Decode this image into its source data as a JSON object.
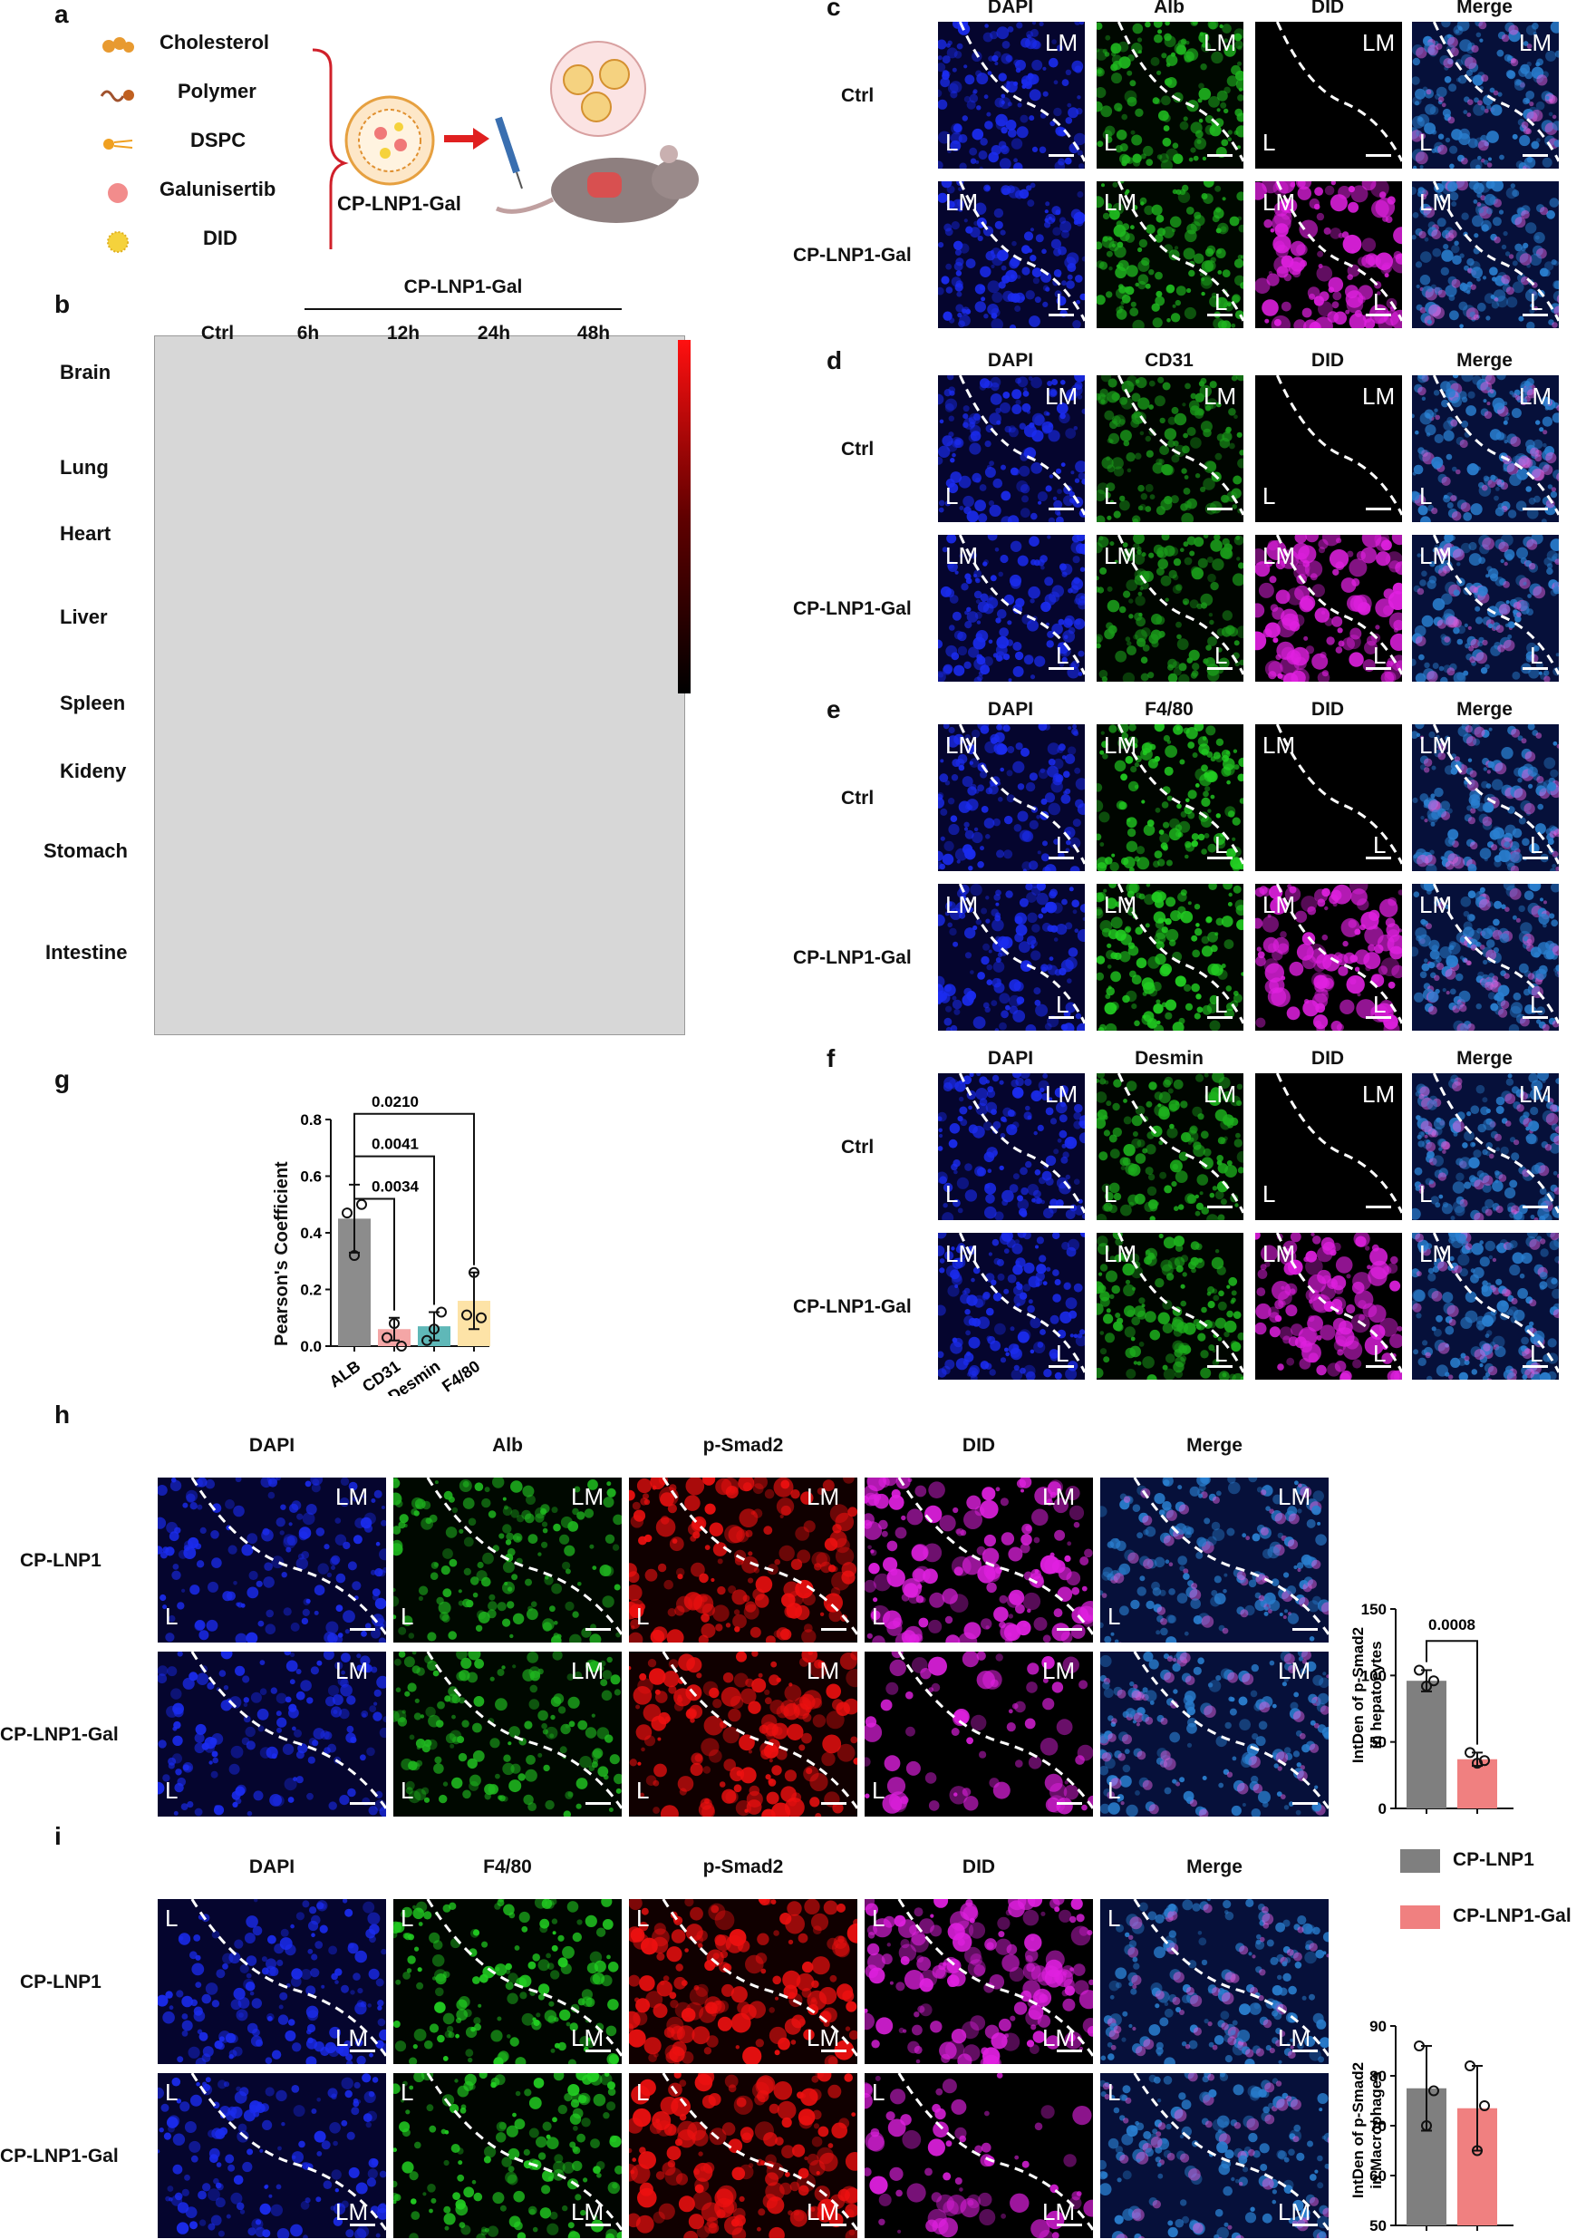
{
  "panels": {
    "a": {
      "letter": "a",
      "legend": [
        {
          "name": "Cholesterol",
          "icon": "cholesterol-icon",
          "color": "#e89a30"
        },
        {
          "name": "Polymer",
          "icon": "polymer-icon",
          "color": "#a0522d"
        },
        {
          "name": "DSPC",
          "icon": "dspc-icon",
          "color": "#f0a020"
        },
        {
          "name": "Galunisertib",
          "icon": "galunisertib-icon",
          "color": "#f07878"
        },
        {
          "name": "DID",
          "icon": "did-icon",
          "color": "#f5d23c"
        }
      ],
      "nanoparticle_label": "CP-LNP1-Gal"
    },
    "b": {
      "letter": "b",
      "group_label": "CP-LNP1-Gal",
      "columns": [
        "Ctrl",
        "6h",
        "12h",
        "24h",
        "48h"
      ],
      "organs": [
        "Brain",
        "Lung",
        "Heart",
        "Liver",
        "Spleen",
        "Kideny",
        "Stomach",
        "Intestine"
      ],
      "colorbar": {
        "top": "#ff1010",
        "bottom": "#000000"
      }
    },
    "c": {
      "letter": "c",
      "channels": [
        "DAPI",
        "Alb",
        "DID",
        "Merge"
      ],
      "rows": [
        "Ctrl",
        "CP-LNP1-Gal"
      ]
    },
    "d": {
      "letter": "d",
      "channels": [
        "DAPI",
        "CD31",
        "DID",
        "Merge"
      ],
      "rows": [
        "Ctrl",
        "CP-LNP1-Gal"
      ]
    },
    "e": {
      "letter": "e",
      "channels": [
        "DAPI",
        "F4/80",
        "DID",
        "Merge"
      ],
      "rows": [
        "Ctrl",
        "CP-LNP1-Gal"
      ]
    },
    "f": {
      "letter": "f",
      "channels": [
        "DAPI",
        "Desmin",
        "DID",
        "Merge"
      ],
      "rows": [
        "Ctrl",
        "CP-LNP1-Gal"
      ]
    },
    "g": {
      "letter": "g"
    },
    "h": {
      "letter": "h",
      "channels": [
        "DAPI",
        "Alb",
        "p-Smad2",
        "DID",
        "Merge"
      ],
      "rows": [
        "CP-LNP1",
        "CP-LNP1-Gal"
      ]
    },
    "i": {
      "letter": "i",
      "channels": [
        "DAPI",
        "F4/80",
        "p-Smad2",
        "DID",
        "Merge"
      ],
      "rows": [
        "CP-LNP1",
        "CP-LNP1-Gal"
      ]
    }
  },
  "tile_labels": {
    "lm": "LM",
    "l": "L"
  },
  "legend_hi": {
    "items": [
      {
        "name": "CP-LNP1",
        "color": "#7f7f7f"
      },
      {
        "name": "CP-LNP1-Gal",
        "color": "#f08080"
      }
    ]
  },
  "chart_data": [
    {
      "id": "g",
      "type": "bar",
      "categories": [
        "ALB",
        "CD31",
        "Desmin",
        "F4/80"
      ],
      "values": [
        0.45,
        0.06,
        0.07,
        0.16
      ],
      "errors": [
        0.12,
        0.04,
        0.05,
        0.1
      ],
      "points": [
        [
          0.47,
          0.32,
          0.5
        ],
        [
          0.03,
          0.08,
          0.0
        ],
        [
          0.02,
          0.06,
          0.12
        ],
        [
          0.11,
          0.26,
          0.1
        ]
      ],
      "colors": [
        "#8c8c8c",
        "#f4a6a6",
        "#5fb8b8",
        "#fde3a7"
      ],
      "ylabel": "Pearson's Coefficient",
      "ylim": [
        0,
        0.8
      ],
      "yticks": [
        "0.0",
        "0.2",
        "0.4",
        "0.6",
        "0.8"
      ],
      "comparisons": [
        {
          "from": "ALB",
          "to": "CD31",
          "p": "0.0034"
        },
        {
          "from": "ALB",
          "to": "Desmin",
          "p": "0.0041"
        },
        {
          "from": "ALB",
          "to": "F4/80",
          "p": "0.0210"
        }
      ]
    },
    {
      "id": "h",
      "type": "bar",
      "categories": [
        "CP-LNP1",
        "CP-LNP1-Gal"
      ],
      "values": [
        96,
        37
      ],
      "errors": [
        8,
        5
      ],
      "points": [
        [
          104,
          92,
          96
        ],
        [
          42,
          34,
          36
        ]
      ],
      "colors": [
        "#7f7f7f",
        "#f08080"
      ],
      "ylabel": "IntDen of p-Smad2 in hepatocytes",
      "ylim": [
        0,
        150
      ],
      "yticks": [
        "0",
        "50",
        "100",
        "150"
      ],
      "comparisons": [
        {
          "from": "CP-LNP1",
          "to": "CP-LNP1-Gal",
          "p": "0.0008"
        }
      ]
    },
    {
      "id": "i",
      "type": "bar",
      "categories": [
        "CP-LNP1",
        "CP-LNP1-Gal"
      ],
      "values": [
        77.5,
        73.5
      ],
      "errors": [
        8.5,
        8.5
      ],
      "points": [
        [
          86,
          70,
          77
        ],
        [
          82,
          65,
          74
        ]
      ],
      "colors": [
        "#7f7f7f",
        "#f08080"
      ],
      "ylabel": "IntDen of p-Smad2 in Macrophages",
      "ylim": [
        50,
        90
      ],
      "yticks": [
        "50",
        "60",
        "70",
        "80",
        "90"
      ],
      "comparisons": []
    }
  ]
}
